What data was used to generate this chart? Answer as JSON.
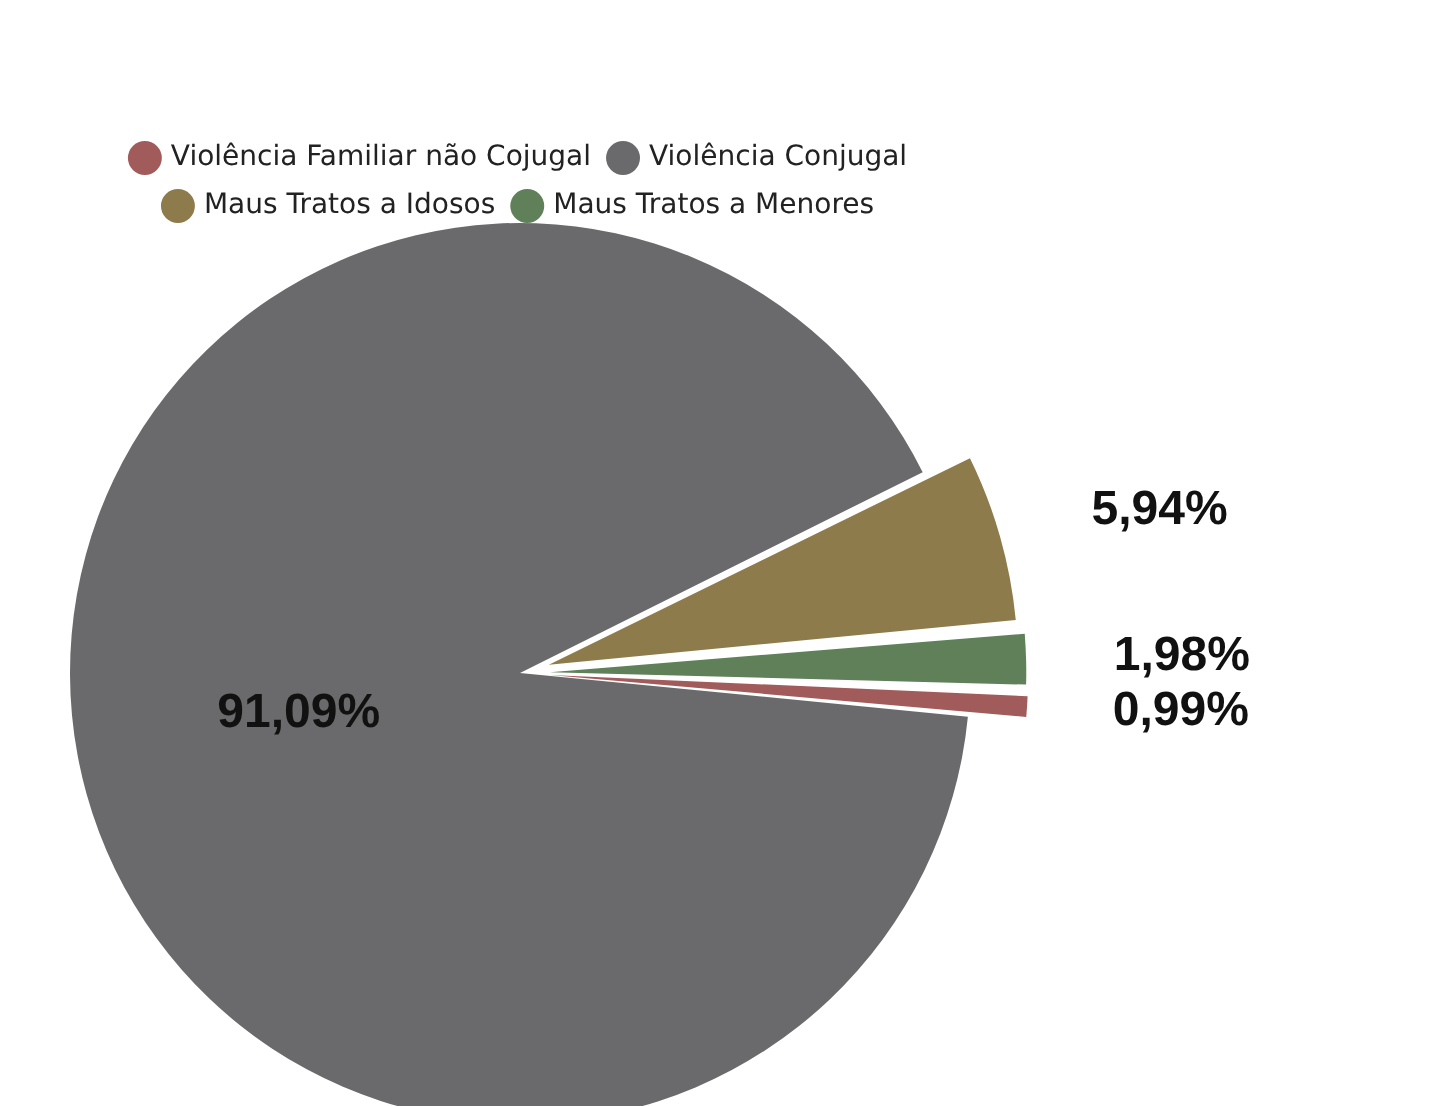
{
  "chart_data": {
    "type": "pie",
    "categories": [
      "Violência Familiar não Cojugal",
      "Violência Conjugal",
      "Maus Tratos a Idosos",
      "Maus Tratos a Menores"
    ],
    "values": [
      0.99,
      91.09,
      5.94,
      1.98
    ],
    "colors": [
      "#a25b5b",
      "#6a6a6c",
      "#8e7b4c",
      "#5f8059"
    ],
    "value_labels": [
      "0,99%",
      "91,09%",
      "5,94%",
      "1,98%"
    ],
    "legend": "top"
  }
}
